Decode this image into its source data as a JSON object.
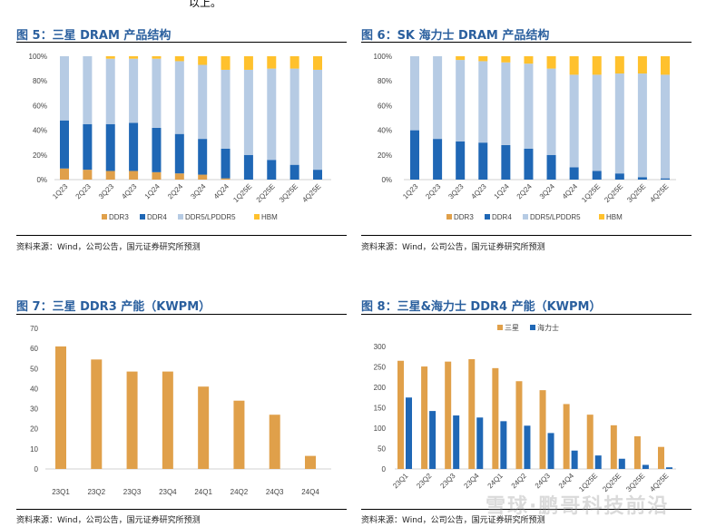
{
  "intro_text": "以上。",
  "watermark": "雪球·鹏哥科技前沿",
  "colors": {
    "title": "#2a5f9e",
    "DDR3": "#e0a04a",
    "DDR4": "#1f67b5",
    "DDR5/LPDDR5": "#b6cbe4",
    "HBM": "#ffc12d",
    "samsung": "#e0a04a",
    "hynix": "#1f67b5"
  },
  "chart_data": [
    {
      "type": "bar",
      "stacked": true,
      "title": "图 5：三星 DRAM 产品结构",
      "source": "资料来源：Wind，公司公告，国元证券研究所预测",
      "ylim": [
        0,
        100
      ],
      "yticks": [
        "0%",
        "20%",
        "40%",
        "60%",
        "80%",
        "100%"
      ],
      "legend": "bottom",
      "categories": [
        "1Q23",
        "2Q23",
        "3Q23",
        "4Q23",
        "1Q24",
        "2Q24",
        "3Q24",
        "4Q24",
        "1Q25E",
        "2Q25E",
        "3Q25E",
        "4Q25E"
      ],
      "series": [
        {
          "name": "DDR3",
          "values": [
            9,
            8,
            7,
            7,
            6,
            5,
            4,
            1,
            0,
            0,
            0,
            0
          ]
        },
        {
          "name": "DDR4",
          "values": [
            39,
            37,
            38,
            39,
            36,
            32,
            29,
            24,
            20,
            16,
            12,
            8
          ]
        },
        {
          "name": "DDR5/LPDDR5",
          "values": [
            52,
            55,
            53,
            52,
            56,
            59,
            60,
            64,
            69,
            74,
            78,
            81
          ]
        },
        {
          "name": "HBM",
          "values": [
            0,
            0,
            2,
            2,
            2,
            4,
            7,
            11,
            11,
            10,
            10,
            11
          ]
        }
      ]
    },
    {
      "type": "bar",
      "stacked": true,
      "title": "图 6：SK 海力士 DRAM 产品结构",
      "source": "资料来源：Wind，公司公告，国元证券研究所预测",
      "ylim": [
        0,
        100
      ],
      "yticks": [
        "0%",
        "20%",
        "40%",
        "60%",
        "80%",
        "100%"
      ],
      "legend": "bottom",
      "categories": [
        "1Q23",
        "2Q23",
        "3Q23",
        "4Q23",
        "1Q24",
        "2Q24",
        "3Q24",
        "4Q24",
        "1Q25E",
        "2Q25E",
        "3Q25E",
        "4Q25E"
      ],
      "series": [
        {
          "name": "DDR3",
          "values": [
            0,
            0,
            0,
            0,
            0,
            0,
            0,
            0,
            0,
            0,
            0,
            0
          ]
        },
        {
          "name": "DDR4",
          "values": [
            40,
            33,
            31,
            30,
            28,
            25,
            20,
            10,
            7,
            5,
            2,
            1
          ]
        },
        {
          "name": "DDR5/LPDDR5",
          "values": [
            60,
            67,
            66,
            66,
            67,
            69,
            70,
            75,
            78,
            81,
            84,
            84
          ]
        },
        {
          "name": "HBM",
          "values": [
            0,
            0,
            3,
            4,
            5,
            6,
            10,
            15,
            15,
            14,
            14,
            15
          ]
        }
      ]
    },
    {
      "type": "bar",
      "title": "图 7：三星 DDR3 产能（KWPM）",
      "source": "资料来源：Wind，公司公告，国元证券研究所预测",
      "ylim": [
        0,
        70
      ],
      "yticks": [
        "0",
        "10",
        "20",
        "30",
        "40",
        "50",
        "60",
        "70"
      ],
      "categories": [
        "23Q1",
        "23Q2",
        "23Q3",
        "23Q4",
        "24Q1",
        "24Q2",
        "24Q3",
        "24Q4"
      ],
      "series": [
        {
          "values": [
            61,
            54.5,
            48.5,
            48.5,
            41,
            34,
            27,
            6.5
          ]
        }
      ]
    },
    {
      "type": "bar",
      "title": "图 8：三星&海力士 DDR4 产能（KWPM）",
      "source": "资料来源：Wind，公司公告，国元证券研究所预测",
      "ylim": [
        0,
        300
      ],
      "yticks": [
        "0",
        "50",
        "100",
        "150",
        "200",
        "250",
        "300"
      ],
      "legend": "top",
      "categories": [
        "23Q1",
        "23Q2",
        "23Q3",
        "23Q4",
        "24Q1",
        "24Q2",
        "24Q3",
        "24Q4",
        "1Q25E",
        "2Q25E",
        "3Q25E",
        "4Q25E"
      ],
      "series": [
        {
          "name": "三星",
          "values": [
            265,
            251,
            263,
            269,
            247,
            215,
            193,
            159,
            133,
            107,
            80,
            54
          ]
        },
        {
          "name": "海力士",
          "values": [
            175,
            142,
            131,
            126,
            117,
            106,
            88,
            45,
            33,
            25,
            10,
            4
          ]
        }
      ]
    }
  ]
}
